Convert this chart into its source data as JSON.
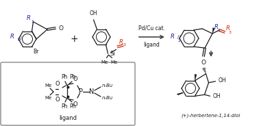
{
  "background": "#ffffff",
  "bond_color": "#1a1a1a",
  "blue_color": "#1a1aaa",
  "red_color": "#cc2200",
  "arrow_color": "#444444",
  "box_color": "#888888",
  "catalyst_text": "Pd/Cu cat.",
  "ligand_text": "ligand",
  "product_name": "(+)-herbertene-1,14-diol",
  "figsize": [
    3.78,
    1.84
  ],
  "dpi": 100
}
